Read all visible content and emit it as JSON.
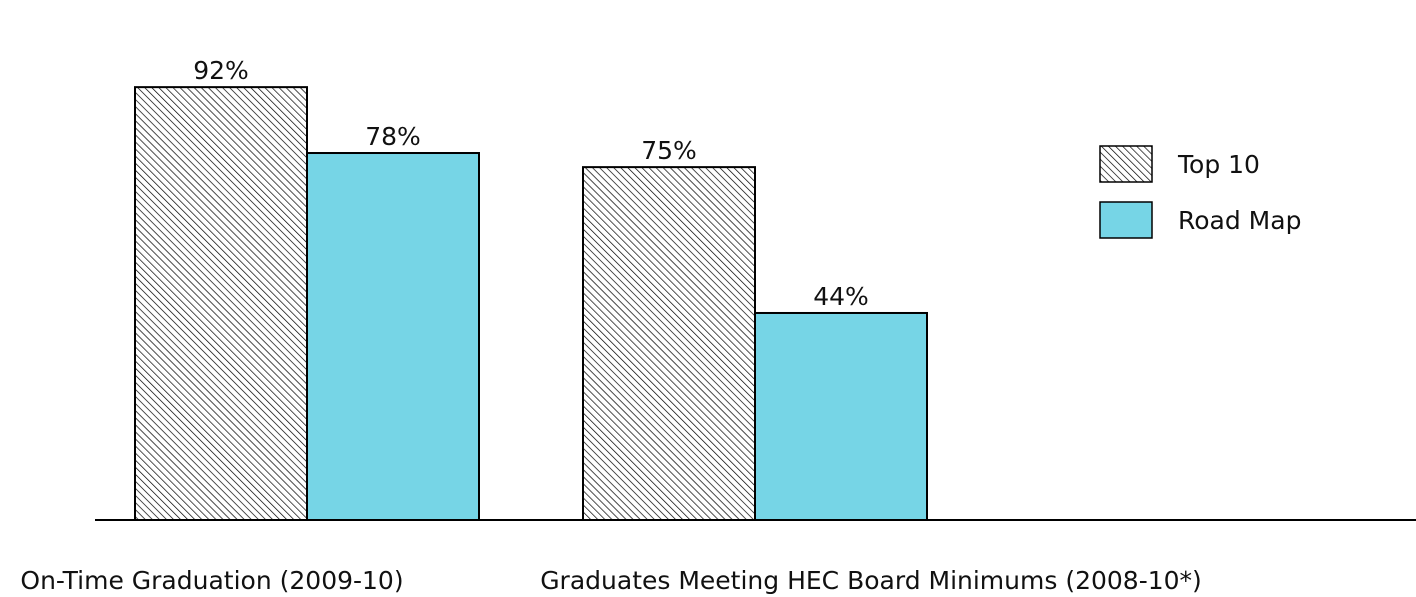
{
  "chart_data": {
    "type": "bar",
    "categories": [
      "On-Time Graduation (2009-10)",
      "Graduates Meeting HEC Board Minimums (2008-10*)"
    ],
    "series": [
      {
        "name": "Top 10",
        "values": [
          92,
          75
        ],
        "value_labels": [
          "92%",
          "75%"
        ],
        "fill": "hatch"
      },
      {
        "name": "Road Map",
        "values": [
          78,
          44
        ],
        "value_labels": [
          "78%",
          "44%"
        ],
        "fill": "#76d5e6"
      }
    ],
    "unit": "%",
    "ylim": [
      0,
      100
    ],
    "grid": false,
    "legend": "right",
    "colors": {
      "road_map": "#76d5e6",
      "hatch": "#000000",
      "axis": "#000000"
    }
  }
}
